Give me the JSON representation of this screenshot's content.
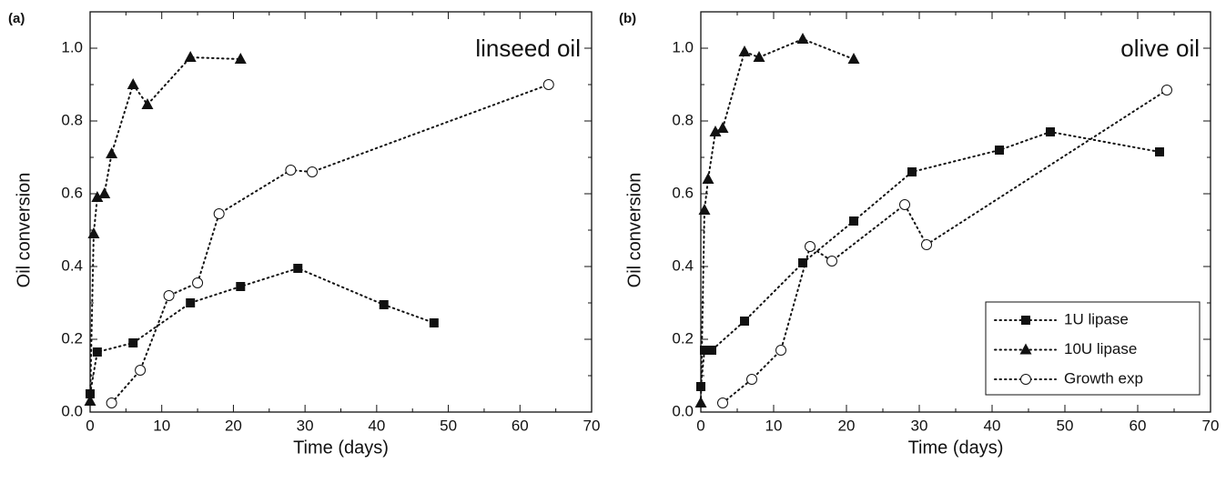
{
  "chart_data": [
    {
      "type": "line",
      "label": "(a)",
      "annotation": "linseed oil",
      "xlabel": "Time (days)",
      "ylabel": "Oil conversion",
      "xlim": [
        0,
        70
      ],
      "xticks": [
        0,
        10,
        20,
        30,
        40,
        50,
        60,
        70
      ],
      "ylim": [
        0,
        1.1
      ],
      "yticks": [
        {
          "value": 0,
          "label": "0.0"
        },
        {
          "value": 0.2,
          "label": "0.2"
        },
        {
          "value": 0.4,
          "label": "0.4"
        },
        {
          "value": 0.6,
          "label": "0.6"
        },
        {
          "value": 0.8,
          "label": "0.8"
        },
        {
          "value": 1,
          "label": "1.0"
        }
      ],
      "series": [
        {
          "color": "#111111",
          "marker": "square",
          "x": [
            0,
            1,
            6,
            14,
            21,
            29,
            41,
            48
          ],
          "values": [
            0.05,
            0.165,
            0.19,
            0.3,
            0.345,
            0.395,
            0.295,
            0.245
          ]
        },
        {
          "color": "#111111",
          "marker": "triangle",
          "x": [
            0,
            0.5,
            1,
            2,
            3,
            6,
            8,
            14,
            21
          ],
          "values": [
            0.03,
            0.49,
            0.59,
            0.6,
            0.71,
            0.9,
            0.845,
            0.975,
            0.97
          ]
        },
        {
          "color": "#111111",
          "marker": "circle-open",
          "x": [
            3,
            7,
            11,
            15,
            18,
            28,
            31,
            64
          ],
          "values": [
            0.025,
            0.115,
            0.32,
            0.355,
            0.545,
            0.665,
            0.66,
            0.9
          ]
        }
      ]
    },
    {
      "type": "line",
      "label": "(b)",
      "annotation": "olive oil",
      "xlabel": "Time (days)",
      "ylabel": "Oil conversion",
      "xlim": [
        0,
        70
      ],
      "xticks": [
        0,
        10,
        20,
        30,
        40,
        50,
        60,
        70
      ],
      "ylim": [
        0,
        1.1
      ],
      "yticks": [
        {
          "value": 0,
          "label": "0.0"
        },
        {
          "value": 0.2,
          "label": "0.2"
        },
        {
          "value": 0.4,
          "label": "0.4"
        },
        {
          "value": 0.6,
          "label": "0.6"
        },
        {
          "value": 0.8,
          "label": "0.8"
        },
        {
          "value": 1,
          "label": "1.0"
        }
      ],
      "legend": "lower right",
      "series": [
        {
          "name": "1U lipase",
          "color": "#111111",
          "marker": "square",
          "x": [
            0,
            0.5,
            1.5,
            6,
            14,
            21,
            29,
            41,
            48,
            63
          ],
          "values": [
            0.07,
            0.17,
            0.17,
            0.25,
            0.41,
            0.525,
            0.66,
            0.72,
            0.77,
            0.715
          ]
        },
        {
          "name": "10U lipase",
          "color": "#111111",
          "marker": "triangle",
          "x": [
            0,
            0.5,
            1,
            2,
            3,
            6,
            8,
            14,
            21
          ],
          "values": [
            0.025,
            0.555,
            0.64,
            0.77,
            0.78,
            0.99,
            0.975,
            1.025,
            0.97
          ]
        },
        {
          "name": "Growth exp",
          "color": "#111111",
          "marker": "circle-open",
          "x": [
            3,
            7,
            11,
            15,
            18,
            28,
            31,
            64
          ],
          "values": [
            0.025,
            0.09,
            0.17,
            0.455,
            0.415,
            0.57,
            0.46,
            0.885
          ]
        }
      ]
    }
  ]
}
